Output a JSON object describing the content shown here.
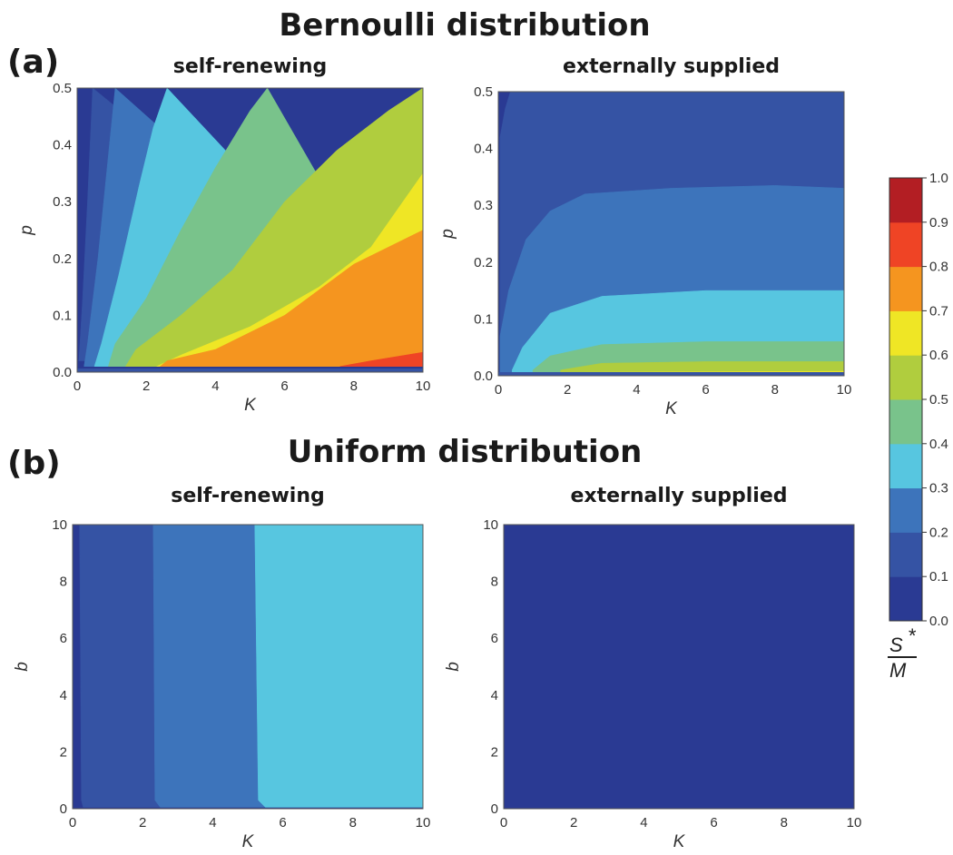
{
  "figure": {
    "panel_a": {
      "title": "Bernoulli distribution",
      "letter": "(a)"
    },
    "panel_b": {
      "title": "Uniform distribution",
      "letter": "(b)"
    },
    "colorbar": {
      "label_numerator": "S",
      "label_superscript": "*",
      "label_denominator": "M",
      "levels": [
        0.0,
        0.1,
        0.2,
        0.3,
        0.4,
        0.5,
        0.6,
        0.7,
        0.8,
        0.9,
        1.0
      ],
      "tick_labels": [
        "0.0",
        "0.1",
        "0.2",
        "0.3",
        "0.4",
        "0.5",
        "0.6",
        "0.7",
        "0.8",
        "0.9",
        "1.0"
      ],
      "colors": [
        "#2a3a93",
        "#3553a4",
        "#3d74bb",
        "#57c6e0",
        "#79c38b",
        "#b0cd3e",
        "#efe625",
        "#f5951f",
        "#ef4425",
        "#b31e23"
      ]
    }
  },
  "chart_data": [
    {
      "type": "heatmap",
      "panel": "a",
      "title": "self-renewing",
      "xlabel": "K",
      "ylabel": "p",
      "xlim": [
        0,
        10
      ],
      "ylim": [
        0,
        0.5
      ],
      "xticks": [
        0,
        2,
        4,
        6,
        8,
        10
      ],
      "xtick_labels": [
        "0",
        "2",
        "4",
        "6",
        "8",
        "10"
      ],
      "yticks": [
        0,
        0.1,
        0.2,
        0.3,
        0.4,
        0.5
      ],
      "ytick_labels": [
        "0.0",
        "0.1",
        "0.2",
        "0.3",
        "0.4",
        "0.5"
      ],
      "contour_boundaries": [
        {
          "level": 0.1,
          "points": [
            [
              0.05,
              0.02
            ],
            [
              0.15,
              0.12
            ],
            [
              0.3,
              0.3
            ],
            [
              0.45,
              0.5
            ]
          ]
        },
        {
          "level": 0.2,
          "points": [
            [
              0.2,
              0.01
            ],
            [
              0.3,
              0.05
            ],
            [
              0.6,
              0.2
            ],
            [
              0.9,
              0.38
            ],
            [
              1.1,
              0.5
            ]
          ]
        },
        {
          "level": 0.3,
          "points": [
            [
              0.5,
              0.01
            ],
            [
              0.7,
              0.05
            ],
            [
              1.2,
              0.17
            ],
            [
              1.8,
              0.33
            ],
            [
              2.2,
              0.43
            ],
            [
              2.6,
              0.5
            ]
          ]
        },
        {
          "level": 0.4,
          "points": [
            [
              0.9,
              0.01
            ],
            [
              1.1,
              0.05
            ],
            [
              2.0,
              0.13
            ],
            [
              3.0,
              0.25
            ],
            [
              4.0,
              0.36
            ],
            [
              5.0,
              0.46
            ],
            [
              5.5,
              0.5
            ]
          ]
        },
        {
          "level": 0.5,
          "points": [
            [
              1.4,
              0.01
            ],
            [
              1.7,
              0.04
            ],
            [
              3.0,
              0.1
            ],
            [
              4.5,
              0.18
            ],
            [
              6.0,
              0.3
            ],
            [
              7.5,
              0.39
            ],
            [
              9.0,
              0.46
            ],
            [
              10,
              0.5
            ]
          ]
        },
        {
          "level": 0.6,
          "points": [
            [
              2.3,
              0.01
            ],
            [
              3.0,
              0.03
            ],
            [
              5.0,
              0.08
            ],
            [
              7.0,
              0.15
            ],
            [
              8.5,
              0.22
            ],
            [
              10,
              0.35
            ]
          ]
        },
        {
          "level": 0.7,
          "points": [
            [
              2.4,
              0.01
            ],
            [
              2.6,
              0.02
            ],
            [
              4.0,
              0.04
            ],
            [
              6.0,
              0.1
            ],
            [
              8.0,
              0.19
            ],
            [
              10,
              0.25
            ]
          ]
        },
        {
          "level": 0.8,
          "points": [
            [
              7.6,
              0.01
            ],
            [
              8.5,
              0.02
            ],
            [
              10,
              0.035
            ]
          ]
        }
      ]
    },
    {
      "type": "heatmap",
      "panel": "a",
      "title": "externally supplied",
      "xlabel": "K",
      "ylabel": "p",
      "xlim": [
        0,
        10
      ],
      "ylim": [
        0,
        0.5
      ],
      "xticks": [
        0,
        2,
        4,
        6,
        8,
        10
      ],
      "xtick_labels": [
        "0",
        "2",
        "4",
        "6",
        "8",
        "10"
      ],
      "yticks": [
        0,
        0.1,
        0.2,
        0.3,
        0.4,
        0.5
      ],
      "ytick_labels": [
        "0.0",
        "0.1",
        "0.2",
        "0.3",
        "0.4",
        "0.5"
      ],
      "contour_boundaries": [
        {
          "level": 0.1,
          "points": [
            [
              0.05,
              0.42
            ],
            [
              0.2,
              0.47
            ],
            [
              0.35,
              0.5
            ]
          ]
        },
        {
          "level": 0.2,
          "points": [
            [
              0.05,
              0.07
            ],
            [
              0.3,
              0.15
            ],
            [
              0.8,
              0.24
            ],
            [
              1.5,
              0.29
            ],
            [
              2.5,
              0.32
            ],
            [
              5,
              0.33
            ],
            [
              8,
              0.335
            ],
            [
              10,
              0.33
            ]
          ]
        },
        {
          "level": 0.3,
          "points": [
            [
              0.4,
              0.01
            ],
            [
              0.7,
              0.05
            ],
            [
              1.5,
              0.11
            ],
            [
              3,
              0.14
            ],
            [
              6,
              0.15
            ],
            [
              10,
              0.15
            ]
          ]
        },
        {
          "level": 0.4,
          "points": [
            [
              1.0,
              0.01
            ],
            [
              1.5,
              0.035
            ],
            [
              3,
              0.055
            ],
            [
              6,
              0.06
            ],
            [
              10,
              0.06
            ]
          ]
        },
        {
          "level": 0.5,
          "points": [
            [
              1.8,
              0.01
            ],
            [
              3,
              0.022
            ],
            [
              6,
              0.025
            ],
            [
              10,
              0.025
            ]
          ]
        },
        {
          "level": 0.6,
          "points": [
            [
              2.5,
              0.006
            ],
            [
              10,
              0.008
            ]
          ]
        }
      ]
    },
    {
      "type": "heatmap",
      "panel": "b",
      "title": "self-renewing",
      "xlabel": "K",
      "ylabel": "b",
      "xlim": [
        0,
        10
      ],
      "ylim": [
        0,
        10
      ],
      "xticks": [
        0,
        2,
        4,
        6,
        8,
        10
      ],
      "xtick_labels": [
        "0",
        "2",
        "4",
        "6",
        "8",
        "10"
      ],
      "yticks": [
        0,
        2,
        4,
        6,
        8,
        10
      ],
      "ytick_labels": [
        "0",
        "2",
        "4",
        "6",
        "8",
        "10"
      ],
      "contour_boundaries": [
        {
          "level": 0.1,
          "points": [
            [
              0.3,
              0.05
            ],
            [
              0.25,
              0.3
            ],
            [
              0.2,
              10
            ]
          ]
        },
        {
          "level": 0.2,
          "points": [
            [
              2.5,
              0.05
            ],
            [
              2.35,
              0.3
            ],
            [
              2.3,
              10
            ]
          ]
        },
        {
          "level": 0.3,
          "points": [
            [
              5.5,
              0.05
            ],
            [
              5.3,
              0.3
            ],
            [
              5.2,
              10
            ]
          ]
        }
      ]
    },
    {
      "type": "heatmap",
      "panel": "b",
      "title": "externally supplied",
      "xlabel": "K",
      "ylabel": "b",
      "xlim": [
        0,
        10
      ],
      "ylim": [
        0,
        10
      ],
      "xticks": [
        0,
        2,
        4,
        6,
        8,
        10
      ],
      "xtick_labels": [
        "0",
        "2",
        "4",
        "6",
        "8",
        "10"
      ],
      "yticks": [
        0,
        2,
        4,
        6,
        8,
        10
      ],
      "ytick_labels": [
        "0",
        "2",
        "4",
        "6",
        "8",
        "10"
      ],
      "contour_boundaries": []
    }
  ]
}
